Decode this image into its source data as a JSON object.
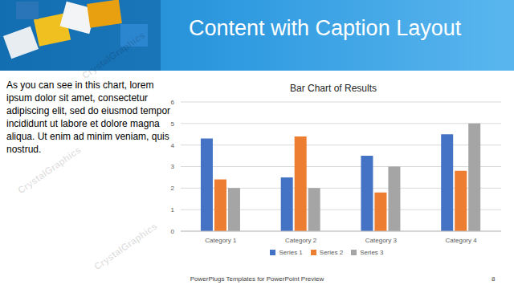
{
  "slide": {
    "title": "Content with Caption Layout",
    "caption": "As you can see in this chart, lorem ipsum dolor sit amet, consectetur adipiscing elit, sed do eiusmod tempor incididunt ut labore et dolore magna aliqua. Ut enim ad minim veniam, quis nostrud.",
    "footer": "PowerPlugs Templates for PowerPoint Preview",
    "page_number": "8",
    "watermark": "CrystalGraphics"
  },
  "chart_data": {
    "type": "bar",
    "title": "Bar Chart of Results",
    "categories": [
      "Category 1",
      "Category 2",
      "Category 3",
      "Category 4"
    ],
    "series": [
      {
        "name": "Series 1",
        "color": "#4472c4",
        "values": [
          4.3,
          2.5,
          3.5,
          4.5
        ]
      },
      {
        "name": "Series 2",
        "color": "#ed7d31",
        "values": [
          2.4,
          4.4,
          1.8,
          2.8
        ]
      },
      {
        "name": "Series 3",
        "color": "#a5a5a5",
        "values": [
          2,
          2,
          3,
          5
        ]
      }
    ],
    "ylim": [
      0,
      6
    ],
    "yticks": [
      0,
      1,
      2,
      3,
      4,
      5,
      6
    ],
    "grid": true,
    "legend": "bottom"
  }
}
